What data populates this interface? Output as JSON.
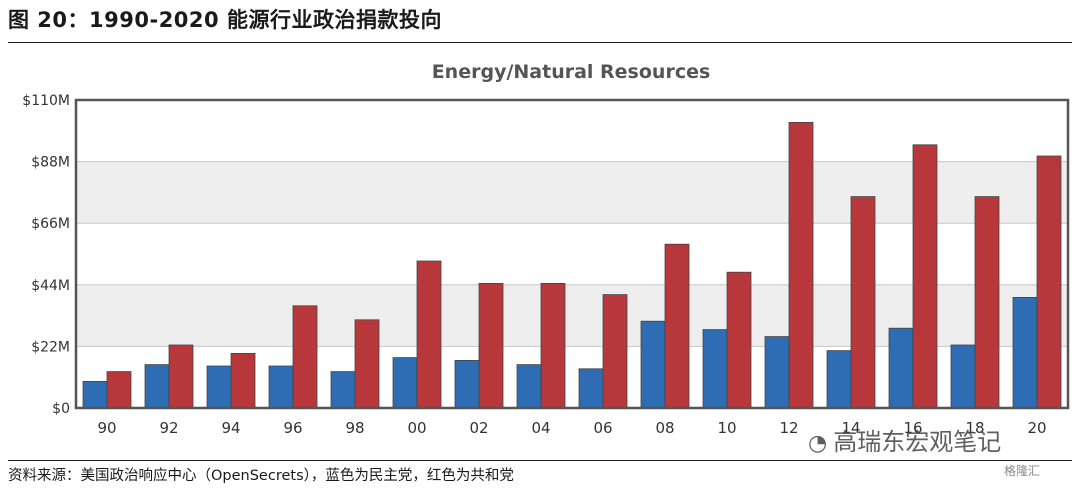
{
  "figure": {
    "title": "图 20：1990-2020 能源行业政治捐款投向",
    "source": "资料来源：美国政治响应中心（OpenSecrets），蓝色为民主党，红色为共和党"
  },
  "watermark": {
    "text": "高瑞东宏观笔记",
    "icon": "wechat-icon"
  },
  "logo": {
    "text": "格隆汇"
  },
  "colors": {
    "democrat": "#2e6db4",
    "republican": "#b8373a",
    "plot_frame": "#555555"
  },
  "chart_data": {
    "type": "bar",
    "title": "Energy/Natural Resources",
    "categories": [
      "90",
      "92",
      "94",
      "96",
      "98",
      "00",
      "02",
      "04",
      "06",
      "08",
      "10",
      "12",
      "14",
      "16",
      "18",
      "20"
    ],
    "series": [
      {
        "values": [
          9.5,
          15.5,
          15,
          15,
          13,
          18,
          17,
          15.5,
          14,
          31,
          28,
          25.5,
          20.5,
          28.5,
          22.5,
          39.5
        ]
      },
      {
        "values": [
          13,
          22.5,
          19.5,
          36.5,
          31.5,
          52.5,
          44.5,
          44.5,
          40.5,
          58.5,
          48.5,
          102,
          75.5,
          94,
          75.5,
          90
        ]
      }
    ],
    "yticks": [
      "$0",
      "$22M",
      "$44M",
      "$66M",
      "$88M",
      "$110M"
    ],
    "ylim": [
      0,
      110
    ],
    "grid": true
  }
}
